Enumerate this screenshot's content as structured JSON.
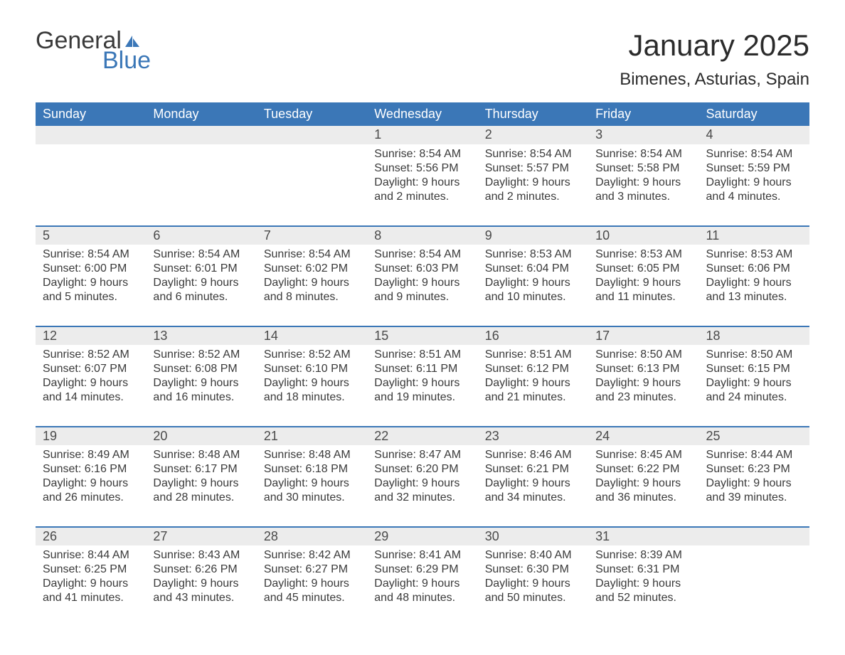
{
  "logo": {
    "word1": "General",
    "word2": "Blue",
    "sail_color": "#3b77b7"
  },
  "header": {
    "month_title": "January 2025",
    "location": "Bimenes, Asturias, Spain",
    "title_fontsize": 42,
    "location_fontsize": 24,
    "title_color": "#2b2b2b"
  },
  "colors": {
    "header_bg": "#3b77b7",
    "header_text": "#ffffff",
    "daynum_bg": "#ececec",
    "body_text": "#3a3a3a",
    "page_bg": "#ffffff",
    "divider": "#3b77b7"
  },
  "font": {
    "family": "Arial",
    "body_size": 16,
    "dayheader_size": 18
  },
  "calendar": {
    "type": "table",
    "columns": [
      "Sunday",
      "Monday",
      "Tuesday",
      "Wednesday",
      "Thursday",
      "Friday",
      "Saturday"
    ],
    "weeks": [
      [
        null,
        null,
        null,
        {
          "day": "1",
          "sunrise": "Sunrise: 8:54 AM",
          "sunset": "Sunset: 5:56 PM",
          "dl1": "Daylight: 9 hours",
          "dl2": "and 2 minutes."
        },
        {
          "day": "2",
          "sunrise": "Sunrise: 8:54 AM",
          "sunset": "Sunset: 5:57 PM",
          "dl1": "Daylight: 9 hours",
          "dl2": "and 2 minutes."
        },
        {
          "day": "3",
          "sunrise": "Sunrise: 8:54 AM",
          "sunset": "Sunset: 5:58 PM",
          "dl1": "Daylight: 9 hours",
          "dl2": "and 3 minutes."
        },
        {
          "day": "4",
          "sunrise": "Sunrise: 8:54 AM",
          "sunset": "Sunset: 5:59 PM",
          "dl1": "Daylight: 9 hours",
          "dl2": "and 4 minutes."
        }
      ],
      [
        {
          "day": "5",
          "sunrise": "Sunrise: 8:54 AM",
          "sunset": "Sunset: 6:00 PM",
          "dl1": "Daylight: 9 hours",
          "dl2": "and 5 minutes."
        },
        {
          "day": "6",
          "sunrise": "Sunrise: 8:54 AM",
          "sunset": "Sunset: 6:01 PM",
          "dl1": "Daylight: 9 hours",
          "dl2": "and 6 minutes."
        },
        {
          "day": "7",
          "sunrise": "Sunrise: 8:54 AM",
          "sunset": "Sunset: 6:02 PM",
          "dl1": "Daylight: 9 hours",
          "dl2": "and 8 minutes."
        },
        {
          "day": "8",
          "sunrise": "Sunrise: 8:54 AM",
          "sunset": "Sunset: 6:03 PM",
          "dl1": "Daylight: 9 hours",
          "dl2": "and 9 minutes."
        },
        {
          "day": "9",
          "sunrise": "Sunrise: 8:53 AM",
          "sunset": "Sunset: 6:04 PM",
          "dl1": "Daylight: 9 hours",
          "dl2": "and 10 minutes."
        },
        {
          "day": "10",
          "sunrise": "Sunrise: 8:53 AM",
          "sunset": "Sunset: 6:05 PM",
          "dl1": "Daylight: 9 hours",
          "dl2": "and 11 minutes."
        },
        {
          "day": "11",
          "sunrise": "Sunrise: 8:53 AM",
          "sunset": "Sunset: 6:06 PM",
          "dl1": "Daylight: 9 hours",
          "dl2": "and 13 minutes."
        }
      ],
      [
        {
          "day": "12",
          "sunrise": "Sunrise: 8:52 AM",
          "sunset": "Sunset: 6:07 PM",
          "dl1": "Daylight: 9 hours",
          "dl2": "and 14 minutes."
        },
        {
          "day": "13",
          "sunrise": "Sunrise: 8:52 AM",
          "sunset": "Sunset: 6:08 PM",
          "dl1": "Daylight: 9 hours",
          "dl2": "and 16 minutes."
        },
        {
          "day": "14",
          "sunrise": "Sunrise: 8:52 AM",
          "sunset": "Sunset: 6:10 PM",
          "dl1": "Daylight: 9 hours",
          "dl2": "and 18 minutes."
        },
        {
          "day": "15",
          "sunrise": "Sunrise: 8:51 AM",
          "sunset": "Sunset: 6:11 PM",
          "dl1": "Daylight: 9 hours",
          "dl2": "and 19 minutes."
        },
        {
          "day": "16",
          "sunrise": "Sunrise: 8:51 AM",
          "sunset": "Sunset: 6:12 PM",
          "dl1": "Daylight: 9 hours",
          "dl2": "and 21 minutes."
        },
        {
          "day": "17",
          "sunrise": "Sunrise: 8:50 AM",
          "sunset": "Sunset: 6:13 PM",
          "dl1": "Daylight: 9 hours",
          "dl2": "and 23 minutes."
        },
        {
          "day": "18",
          "sunrise": "Sunrise: 8:50 AM",
          "sunset": "Sunset: 6:15 PM",
          "dl1": "Daylight: 9 hours",
          "dl2": "and 24 minutes."
        }
      ],
      [
        {
          "day": "19",
          "sunrise": "Sunrise: 8:49 AM",
          "sunset": "Sunset: 6:16 PM",
          "dl1": "Daylight: 9 hours",
          "dl2": "and 26 minutes."
        },
        {
          "day": "20",
          "sunrise": "Sunrise: 8:48 AM",
          "sunset": "Sunset: 6:17 PM",
          "dl1": "Daylight: 9 hours",
          "dl2": "and 28 minutes."
        },
        {
          "day": "21",
          "sunrise": "Sunrise: 8:48 AM",
          "sunset": "Sunset: 6:18 PM",
          "dl1": "Daylight: 9 hours",
          "dl2": "and 30 minutes."
        },
        {
          "day": "22",
          "sunrise": "Sunrise: 8:47 AM",
          "sunset": "Sunset: 6:20 PM",
          "dl1": "Daylight: 9 hours",
          "dl2": "and 32 minutes."
        },
        {
          "day": "23",
          "sunrise": "Sunrise: 8:46 AM",
          "sunset": "Sunset: 6:21 PM",
          "dl1": "Daylight: 9 hours",
          "dl2": "and 34 minutes."
        },
        {
          "day": "24",
          "sunrise": "Sunrise: 8:45 AM",
          "sunset": "Sunset: 6:22 PM",
          "dl1": "Daylight: 9 hours",
          "dl2": "and 36 minutes."
        },
        {
          "day": "25",
          "sunrise": "Sunrise: 8:44 AM",
          "sunset": "Sunset: 6:23 PM",
          "dl1": "Daylight: 9 hours",
          "dl2": "and 39 minutes."
        }
      ],
      [
        {
          "day": "26",
          "sunrise": "Sunrise: 8:44 AM",
          "sunset": "Sunset: 6:25 PM",
          "dl1": "Daylight: 9 hours",
          "dl2": "and 41 minutes."
        },
        {
          "day": "27",
          "sunrise": "Sunrise: 8:43 AM",
          "sunset": "Sunset: 6:26 PM",
          "dl1": "Daylight: 9 hours",
          "dl2": "and 43 minutes."
        },
        {
          "day": "28",
          "sunrise": "Sunrise: 8:42 AM",
          "sunset": "Sunset: 6:27 PM",
          "dl1": "Daylight: 9 hours",
          "dl2": "and 45 minutes."
        },
        {
          "day": "29",
          "sunrise": "Sunrise: 8:41 AM",
          "sunset": "Sunset: 6:29 PM",
          "dl1": "Daylight: 9 hours",
          "dl2": "and 48 minutes."
        },
        {
          "day": "30",
          "sunrise": "Sunrise: 8:40 AM",
          "sunset": "Sunset: 6:30 PM",
          "dl1": "Daylight: 9 hours",
          "dl2": "and 50 minutes."
        },
        {
          "day": "31",
          "sunrise": "Sunrise: 8:39 AM",
          "sunset": "Sunset: 6:31 PM",
          "dl1": "Daylight: 9 hours",
          "dl2": "and 52 minutes."
        },
        null
      ]
    ]
  }
}
